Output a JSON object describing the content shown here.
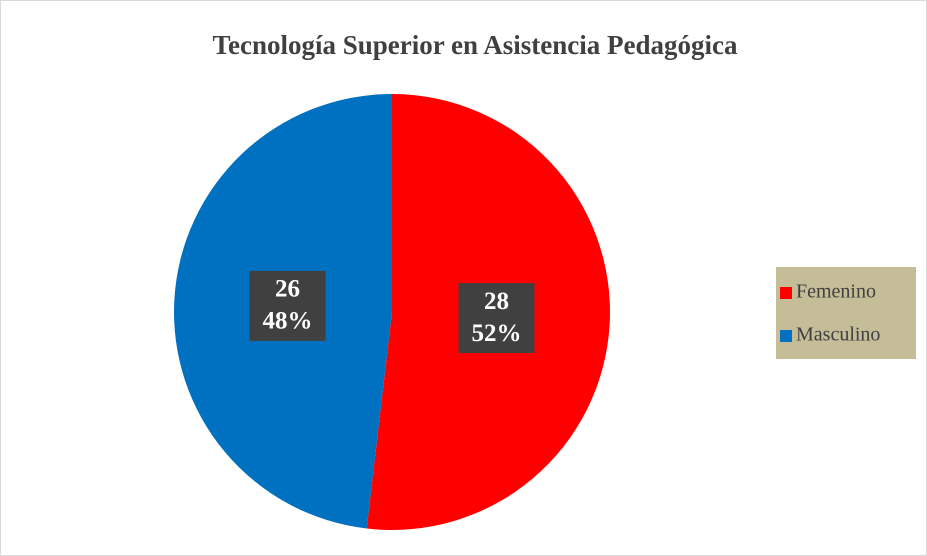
{
  "chart_data": {
    "type": "pie",
    "title": "Tecnología Superior en Asistencia Pedagógica",
    "categories": [
      "Femenino",
      "Masculino"
    ],
    "values": [
      28,
      26
    ],
    "percentages": [
      52,
      48
    ],
    "percentage_labels": [
      "52%",
      "48%"
    ],
    "colors": [
      "#ff0000",
      "#0070c0"
    ],
    "legend": "right"
  }
}
